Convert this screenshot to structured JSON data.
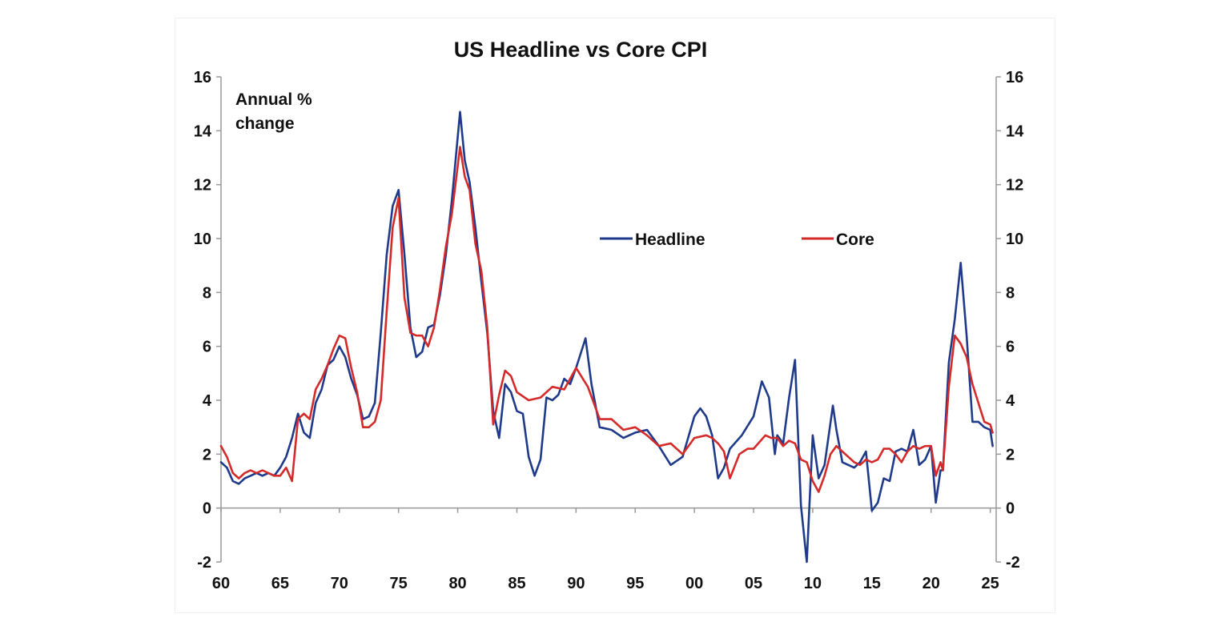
{
  "chart_data": {
    "type": "line",
    "title": "US Headline vs Core CPI",
    "annotation": [
      "Annual %",
      "change"
    ],
    "ylim": [
      -2,
      16
    ],
    "yticks": [
      -2,
      0,
      2,
      4,
      6,
      8,
      10,
      12,
      14,
      16
    ],
    "ytick_labels": [
      "-2",
      "0",
      "2",
      "4",
      "6",
      "8",
      "10",
      "12",
      "14",
      "16"
    ],
    "xlim": [
      1960,
      2025.5
    ],
    "xticks": [
      1960,
      1965,
      1970,
      1975,
      1980,
      1985,
      1990,
      1995,
      2000,
      2005,
      2010,
      2015,
      2020,
      2025
    ],
    "xtick_labels": [
      "60",
      "65",
      "70",
      "75",
      "80",
      "85",
      "90",
      "95",
      "00",
      "05",
      "10",
      "15",
      "20",
      "25"
    ],
    "grid": false,
    "legend_position": "center-right",
    "series": [
      {
        "name": "Headline",
        "color": "#1f3a8a",
        "x": [
          1960,
          1960.5,
          1961,
          1961.5,
          1962,
          1962.5,
          1963,
          1963.5,
          1964,
          1964.5,
          1965,
          1965.5,
          1966,
          1966.5,
          1967,
          1967.5,
          1968,
          1968.5,
          1969,
          1969.5,
          1970,
          1970.5,
          1971,
          1971.5,
          1972,
          1972.5,
          1973,
          1973.5,
          1974,
          1974.5,
          1975,
          1975.5,
          1976,
          1976.5,
          1977,
          1977.5,
          1978,
          1978.5,
          1979,
          1979.5,
          1980.2,
          1980.6,
          1981,
          1981.5,
          1982,
          1982.5,
          1983,
          1983.5,
          1984,
          1984.5,
          1985,
          1985.5,
          1986,
          1986.5,
          1987,
          1987.5,
          1988,
          1988.5,
          1989,
          1989.5,
          1990,
          1990.8,
          1991.3,
          1992,
          1993,
          1994,
          1995,
          1996,
          1997,
          1998,
          1999,
          2000,
          2000.5,
          2001,
          2001.5,
          2002,
          2002.5,
          2003,
          2004,
          2005,
          2005.7,
          2006.3,
          2006.8,
          2007,
          2007.5,
          2008,
          2008.5,
          2009,
          2009.5,
          2010,
          2010.5,
          2011,
          2011.7,
          2012,
          2012.5,
          2013,
          2013.5,
          2014,
          2014.5,
          2015,
          2015.5,
          2016,
          2016.5,
          2017,
          2017.5,
          2018,
          2018.5,
          2019,
          2019.5,
          2020,
          2020.4,
          2020.8,
          2021,
          2021.5,
          2022,
          2022.5,
          2023,
          2023.5,
          2024,
          2024.5,
          2025,
          2025.2
        ],
        "y": [
          1.7,
          1.5,
          1.0,
          0.9,
          1.1,
          1.2,
          1.3,
          1.2,
          1.3,
          1.2,
          1.5,
          1.9,
          2.6,
          3.5,
          2.8,
          2.6,
          3.9,
          4.4,
          5.3,
          5.5,
          6.0,
          5.6,
          4.8,
          4.2,
          3.3,
          3.4,
          3.9,
          6.5,
          9.4,
          11.2,
          11.8,
          9.4,
          6.7,
          5.6,
          5.8,
          6.7,
          6.8,
          7.9,
          9.4,
          11.4,
          14.7,
          12.9,
          12.1,
          10.4,
          8.4,
          6.5,
          3.6,
          2.6,
          4.6,
          4.3,
          3.6,
          3.5,
          1.9,
          1.2,
          1.8,
          4.1,
          4.0,
          4.2,
          4.8,
          4.6,
          5.2,
          6.3,
          4.6,
          3.0,
          2.9,
          2.6,
          2.8,
          2.9,
          2.3,
          1.6,
          1.9,
          3.4,
          3.7,
          3.4,
          2.7,
          1.1,
          1.5,
          2.2,
          2.7,
          3.4,
          4.7,
          4.1,
          2.0,
          2.7,
          2.4,
          4.1,
          5.5,
          0.1,
          -2.0,
          2.7,
          1.1,
          1.6,
          3.8,
          2.9,
          1.7,
          1.6,
          1.5,
          1.7,
          2.1,
          -0.1,
          0.2,
          1.1,
          1.0,
          2.1,
          2.2,
          2.1,
          2.9,
          1.6,
          1.8,
          2.3,
          0.2,
          1.4,
          1.4,
          5.4,
          7.0,
          9.1,
          6.4,
          3.2,
          3.2,
          3.0,
          2.9,
          2.3
        ]
      },
      {
        "name": "Core",
        "color": "#d42a2a",
        "x": [
          1960,
          1960.5,
          1961,
          1961.5,
          1962,
          1962.5,
          1963,
          1963.5,
          1964,
          1964.5,
          1965,
          1965.5,
          1966,
          1966.5,
          1967,
          1967.5,
          1968,
          1968.5,
          1969,
          1969.5,
          1970,
          1970.5,
          1971,
          1971.5,
          1972,
          1972.5,
          1973,
          1973.5,
          1974,
          1974.5,
          1975,
          1975.5,
          1976,
          1976.5,
          1977,
          1977.5,
          1978,
          1978.5,
          1979,
          1979.5,
          1980.2,
          1980.6,
          1981,
          1981.5,
          1982,
          1982.5,
          1983,
          1983.5,
          1984,
          1984.5,
          1985,
          1986,
          1987,
          1988,
          1989,
          1990,
          1991,
          1992,
          1993,
          1994,
          1995,
          1996,
          1997,
          1998,
          1999,
          2000,
          2001,
          2001.5,
          2002,
          2002.5,
          2003,
          2003.8,
          2004.5,
          2005,
          2006,
          2006.5,
          2007,
          2007.5,
          2008,
          2008.5,
          2009,
          2009.5,
          2010,
          2010.5,
          2011,
          2011.5,
          2012,
          2012.5,
          2013,
          2013.5,
          2014,
          2014.5,
          2015,
          2015.5,
          2016,
          2016.5,
          2017,
          2017.5,
          2018,
          2018.5,
          2019,
          2019.5,
          2020,
          2020.4,
          2020.8,
          2021,
          2021.5,
          2022,
          2022.5,
          2023,
          2023.5,
          2024,
          2024.5,
          2025,
          2025.2
        ],
        "y": [
          2.3,
          1.9,
          1.3,
          1.1,
          1.3,
          1.4,
          1.3,
          1.4,
          1.3,
          1.2,
          1.2,
          1.5,
          1.0,
          3.3,
          3.5,
          3.3,
          4.4,
          4.8,
          5.3,
          5.9,
          6.4,
          6.3,
          5.2,
          4.3,
          3.0,
          3.0,
          3.2,
          4.0,
          7.3,
          10.4,
          11.5,
          7.8,
          6.5,
          6.4,
          6.4,
          6.0,
          6.7,
          8.1,
          9.7,
          10.9,
          13.4,
          12.3,
          11.8,
          9.8,
          8.8,
          6.7,
          3.1,
          4.2,
          5.1,
          4.9,
          4.3,
          4.0,
          4.1,
          4.5,
          4.4,
          5.2,
          4.5,
          3.3,
          3.3,
          2.9,
          3.0,
          2.7,
          2.3,
          2.4,
          2.0,
          2.6,
          2.7,
          2.6,
          2.4,
          2.1,
          1.1,
          2.0,
          2.2,
          2.2,
          2.7,
          2.6,
          2.6,
          2.3,
          2.5,
          2.4,
          1.8,
          1.7,
          1.0,
          0.6,
          1.2,
          2.0,
          2.3,
          2.1,
          1.9,
          1.7,
          1.6,
          1.8,
          1.7,
          1.8,
          2.2,
          2.2,
          2.0,
          1.7,
          2.1,
          2.3,
          2.2,
          2.3,
          2.3,
          1.2,
          1.7,
          1.4,
          4.5,
          6.4,
          6.1,
          5.6,
          4.6,
          3.9,
          3.2,
          3.1,
          2.8
        ]
      }
    ]
  }
}
